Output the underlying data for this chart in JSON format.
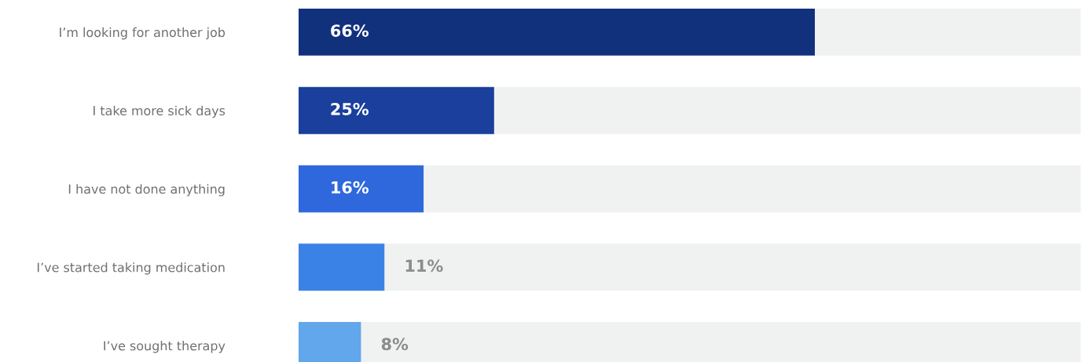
{
  "chart_data": {
    "type": "bar",
    "orientation": "horizontal",
    "stacked": true,
    "categories": [
      "I’m looking for another job",
      "I take more sick days",
      "I have not done anything",
      "I’ve started taking medication",
      "I’ve sought therapy"
    ],
    "series": [
      {
        "colors": [
          "#12317d",
          "#1a3f9c",
          "#2f68dc",
          "#3a82e6",
          "#62a6ec"
        ],
        "values": [
          66,
          25,
          16,
          11,
          8
        ],
        "value_labels": [
          "66%",
          "25%",
          "16%",
          "11%",
          "8%"
        ]
      },
      {
        "color": "#f0f1f1",
        "values": [
          34,
          75,
          84,
          89,
          92
        ]
      }
    ],
    "xlim": [
      0,
      100
    ],
    "tick_labels": "y",
    "grid": false,
    "legend": false
  }
}
